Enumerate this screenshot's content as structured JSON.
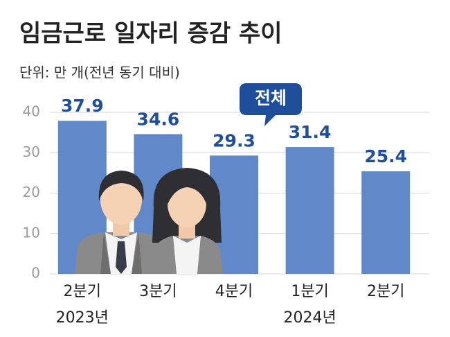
{
  "chart_data": {
    "type": "bar",
    "title": "임금근로 일자리 증감 추이",
    "subtitle": "단위: 만 개(전년 동기 대비)",
    "annotation": "전체",
    "categories": [
      "2분기",
      "3분기",
      "4분기",
      "1분기",
      "2분기"
    ],
    "year_labels": [
      "2023년",
      null,
      null,
      "2024년",
      null
    ],
    "values": [
      37.9,
      34.6,
      29.3,
      31.4,
      25.4
    ],
    "color": "#6189c9",
    "ylim": [
      0,
      40
    ],
    "yticks": [
      0,
      10,
      20,
      30,
      40
    ],
    "grid": true
  }
}
